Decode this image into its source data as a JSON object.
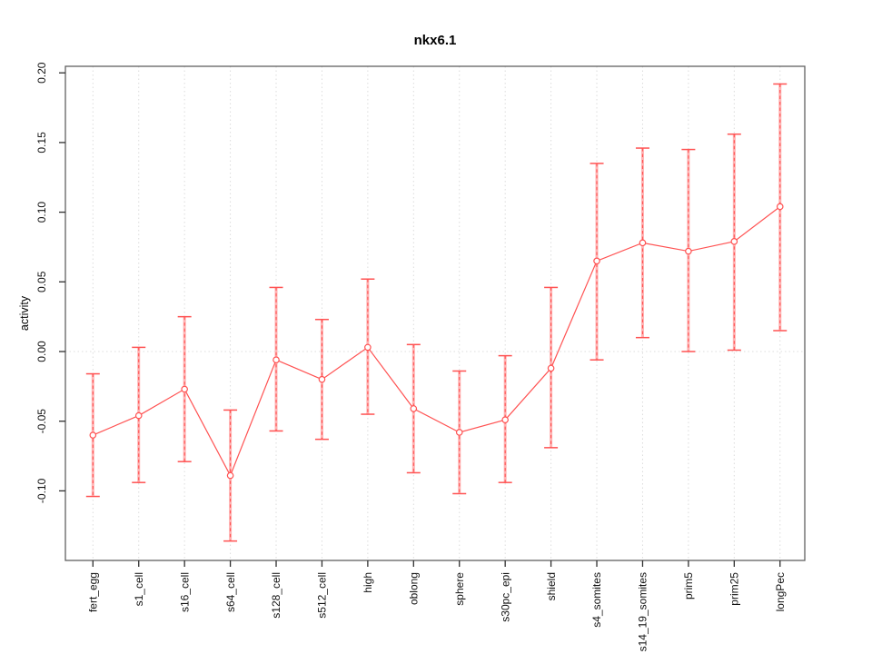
{
  "chart_data": {
    "type": "line",
    "title": "nkx6.1",
    "ylabel": "activity",
    "xlabel": "",
    "categories": [
      "fert_egg",
      "s1_cell",
      "s16_cell",
      "s64_cell",
      "s128_cell",
      "s512_cell",
      "high",
      "oblong",
      "sphere",
      "s30pc_epi",
      "shield",
      "s4_somites",
      "s14_19_somites",
      "prim5",
      "prim25",
      "longPec"
    ],
    "values": [
      -0.06,
      -0.046,
      -0.027,
      -0.089,
      -0.006,
      -0.02,
      0.003,
      -0.041,
      -0.058,
      -0.049,
      -0.012,
      0.065,
      0.078,
      0.072,
      0.079,
      0.104
    ],
    "error_low": [
      -0.104,
      -0.094,
      -0.079,
      -0.136,
      -0.057,
      -0.063,
      -0.045,
      -0.087,
      -0.102,
      -0.094,
      -0.069,
      -0.006,
      0.01,
      0.0,
      0.001,
      0.015
    ],
    "error_high": [
      -0.016,
      0.003,
      0.025,
      -0.042,
      0.046,
      0.023,
      0.052,
      0.005,
      -0.014,
      -0.003,
      0.046,
      0.135,
      0.146,
      0.145,
      0.156,
      0.192
    ],
    "ytick_labels": [
      "0.20",
      "0.15",
      "0.10",
      "0.05",
      "0.00",
      "-0.05",
      "-0.10"
    ],
    "ylim": [
      -0.15,
      0.205
    ],
    "grid": "vertical dotted line at each category, horizontal dotted line at 0",
    "legend": "none",
    "colors": {
      "series": "#ff5252",
      "error_bar_band": "#ffb3b3",
      "grid": "#dcdcdc",
      "tick": "#303030",
      "box": "#606060",
      "text": "#111111",
      "point_fill": "#ffffff"
    }
  }
}
